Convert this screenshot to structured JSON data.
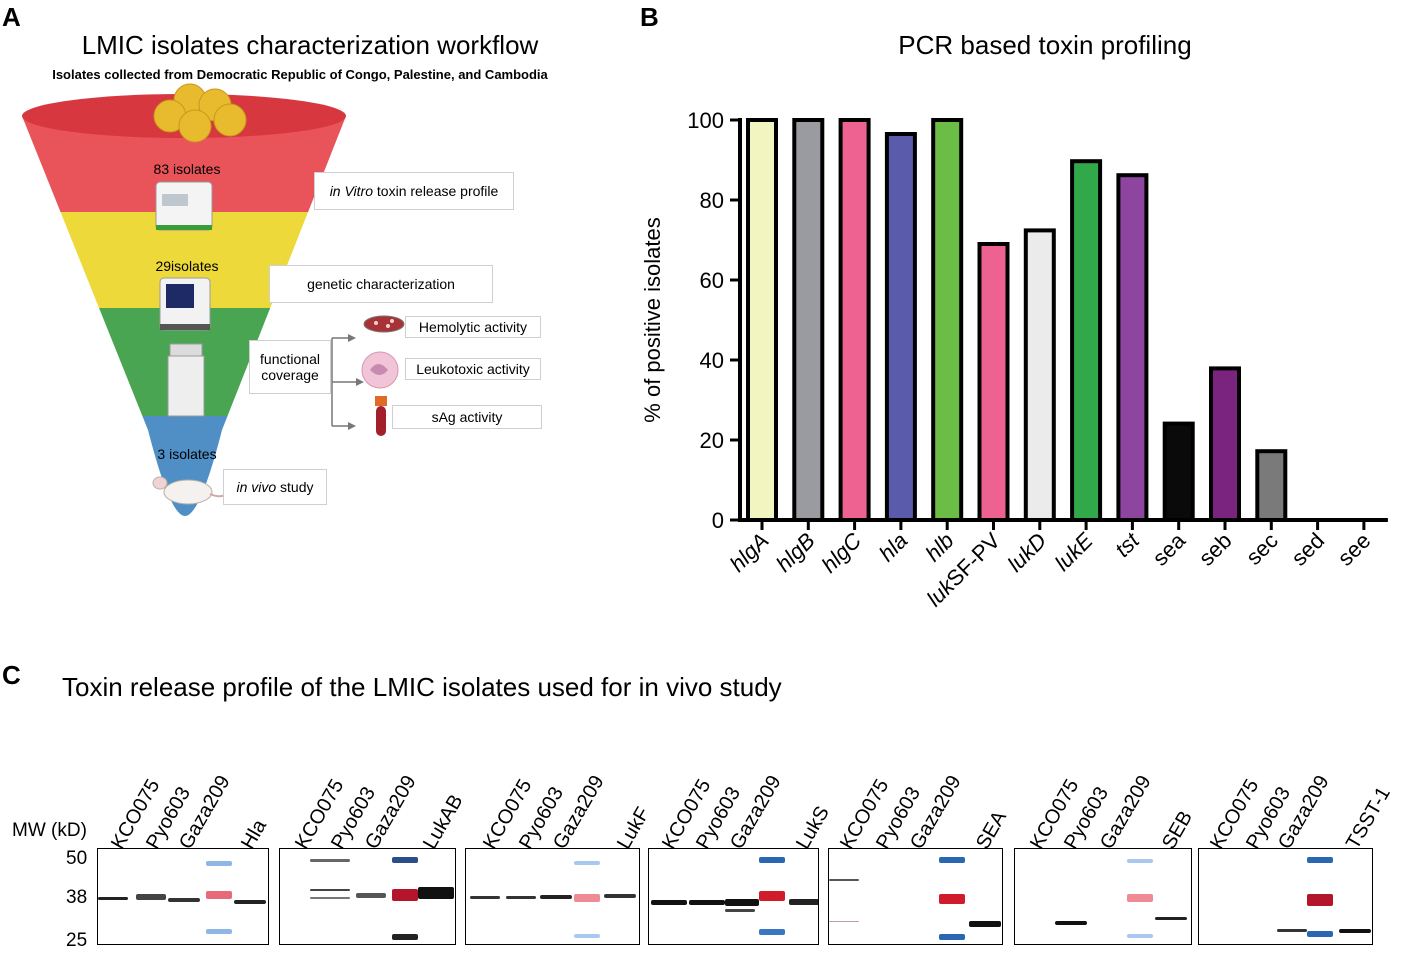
{
  "panel_a": {
    "letter": "A",
    "title": "LMIC isolates characterization workflow",
    "subtitle": "Isolates collected from Democratic Republic of Congo, Palestine, and Cambodia",
    "tier1_count": "83 isolates",
    "tier2_count": "29isolates",
    "tier3_count": "3 isolates",
    "box_invitro_italic": "in Vitro",
    "box_invitro_rest": " toxin release profile",
    "box_genetic": "genetic characterization",
    "box_functional": "functional coverage",
    "box_hemolytic": "Hemolytic activity",
    "box_leukotoxic": "Leukotoxic activity",
    "box_sag": "sAg activity",
    "box_invivo_italic": "in vivo",
    "box_invivo_rest": " study",
    "colors": {
      "red": "#e8545a",
      "yellow": "#edd93a",
      "green": "#4aa553",
      "blue": "#4f8fc6"
    }
  },
  "panel_b": {
    "letter": "B"
  },
  "chart_data": {
    "type": "bar",
    "title": "PCR based toxin profiling",
    "xlabel": "",
    "ylabel": "% of positive isolates",
    "ylim": [
      0,
      100
    ],
    "yticks": [
      "0",
      "20",
      "40",
      "60",
      "80",
      "100"
    ],
    "categories": [
      "hlgA",
      "hlgB",
      "hlgC",
      "hla",
      "hlb",
      "lukSF-PV",
      "lukD",
      "lukE",
      "tst",
      "sea",
      "seb",
      "sec",
      "sed",
      "see"
    ],
    "values": [
      100,
      100,
      100,
      96.5,
      100,
      69,
      72.4,
      89.7,
      86.2,
      24.1,
      37.9,
      17.2,
      0,
      0
    ],
    "colors": [
      "#f2f5bf",
      "#9a9ba0",
      "#ee6291",
      "#5b5bab",
      "#6cbd45",
      "#ee6291",
      "#ebebeb",
      "#31a94a",
      "#8e45a0",
      "#0a0a0a",
      "#7b247f",
      "#7a7a7a",
      "#ffffff",
      "#ffffff"
    ]
  },
  "panel_c": {
    "letter": "C",
    "title": "Toxin release profile of the LMIC isolates used for in vivo study",
    "mw_title": "MW (kD)",
    "mw_50": "50",
    "mw_38": "38",
    "mw_25": "25",
    "blots": [
      {
        "lanes": [
          "KCO075",
          "Pyo603",
          "Gaza209",
          "Hla"
        ]
      },
      {
        "lanes": [
          "KCO075",
          "Pyo603",
          "Gaza209",
          "LukAB"
        ]
      },
      {
        "lanes": [
          "KCO075",
          "Pyo603",
          "Gaza209",
          "LukF"
        ]
      },
      {
        "lanes": [
          "KCO075",
          "Pyo603",
          "Gaza209",
          "LukS"
        ]
      },
      {
        "lanes": [
          "KCO075",
          "Pyo603",
          "Gaza209",
          "SEA"
        ]
      },
      {
        "lanes": [
          "KCO075",
          "Pyo603",
          "Gaza209",
          "SEB"
        ]
      },
      {
        "lanes": [
          "KCO075",
          "Pyo603",
          "Gaza209",
          "TSST-1"
        ]
      }
    ]
  }
}
